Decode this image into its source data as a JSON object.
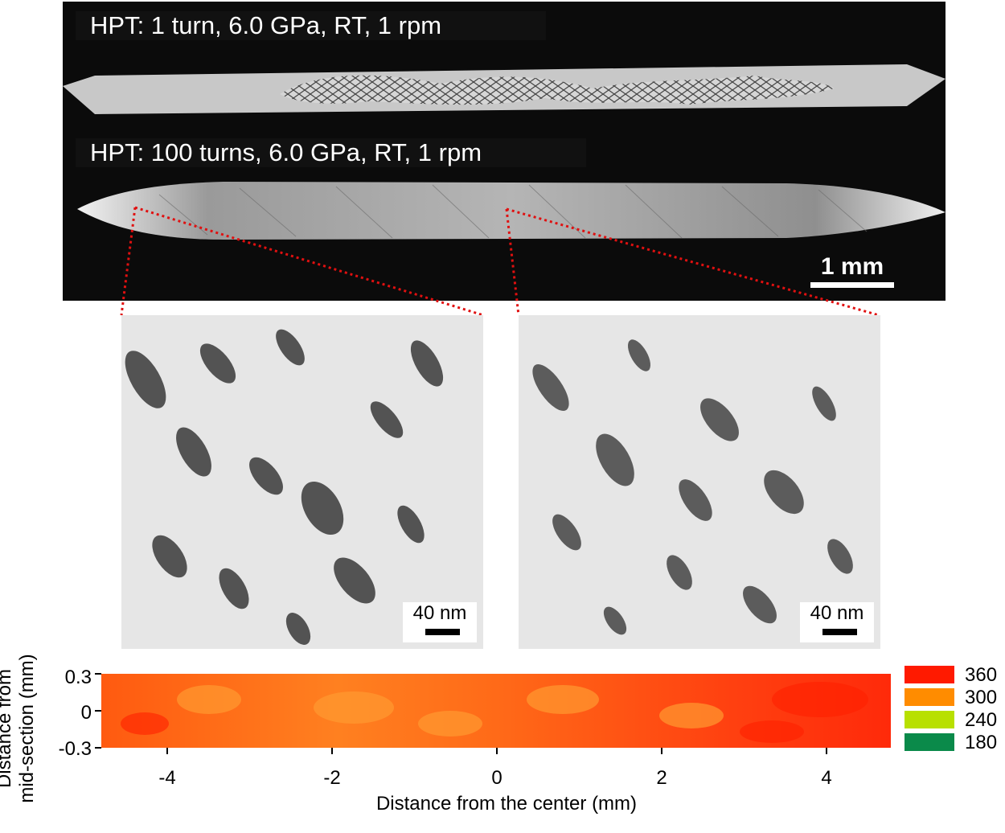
{
  "sem": {
    "label_1": "HPT: 1 turn, 6.0 GPa, RT, 1 rpm",
    "label_2": "HPT: 100 turns, 6.0 GPa, RT, 1 rpm",
    "scale": "1 mm"
  },
  "tem_left": {
    "scale": "40 nm"
  },
  "tem_right": {
    "scale": "40 nm"
  },
  "map": {
    "y_label_line1": "Distance from",
    "y_label_line2": "mid-section (mm)",
    "x_label": "Distance from the center (mm)",
    "x_ticks": [
      "-4",
      "-2",
      "0",
      "2",
      "4"
    ],
    "y_ticks": [
      "0.3",
      "0",
      "-0.3"
    ],
    "legend": [
      {
        "label": "360",
        "color": "#ff1a00"
      },
      {
        "label": "300",
        "color": "#ff8c00"
      },
      {
        "label": "240",
        "color": "#b8e000"
      },
      {
        "label": "180",
        "color": "#0a8a4a"
      }
    ]
  }
}
